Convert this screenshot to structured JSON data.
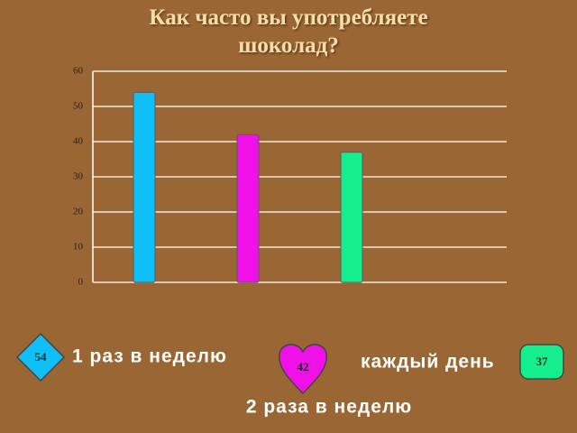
{
  "chart_data": {
    "type": "bar",
    "title": "Как часто вы употребляете шоколад?",
    "categories": [
      "1 раз в неделю",
      "2 раза в неделю",
      "каждый день"
    ],
    "values": [
      54,
      42,
      37
    ],
    "colors": [
      "#10bff5",
      "#f010e8",
      "#14ee8c"
    ],
    "ylim": [
      0,
      60
    ],
    "yticks": [
      0,
      10,
      20,
      30,
      40,
      50,
      60
    ],
    "grid": true
  }
}
